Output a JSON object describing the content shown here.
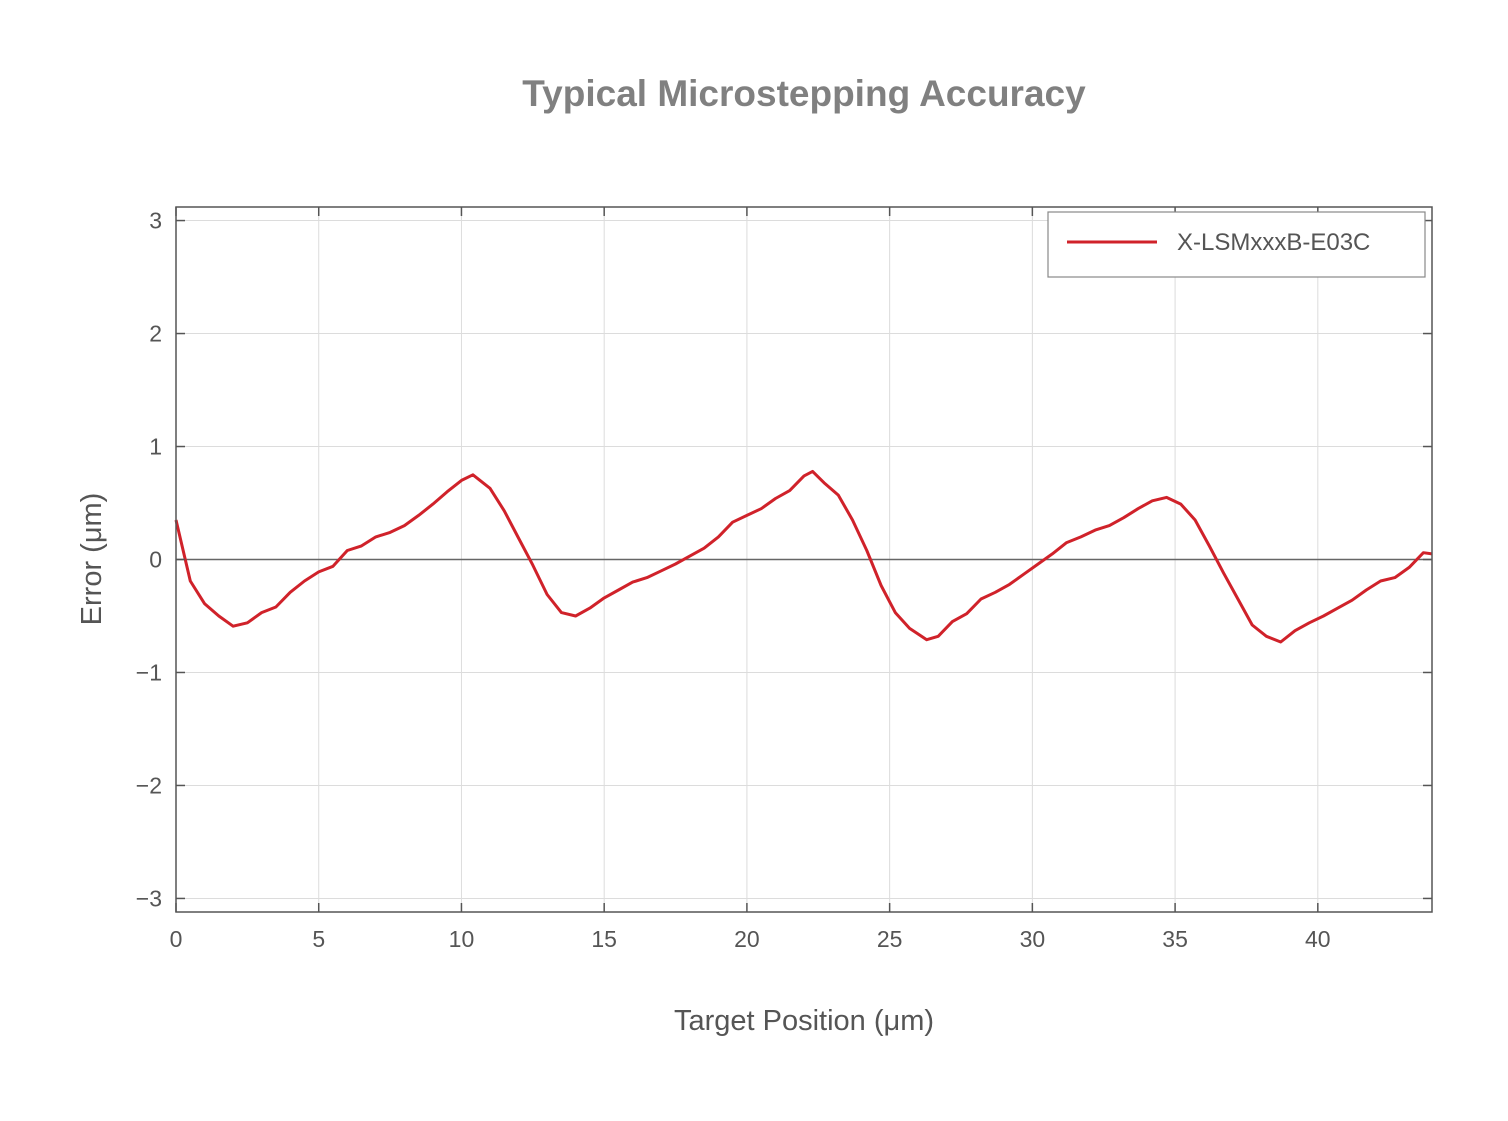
{
  "chart_data": {
    "type": "line",
    "title": "Typical Microstepping Accuracy",
    "xlabel": "Target Position (μm)",
    "ylabel": "Error (μm)",
    "xlim": [
      0,
      44
    ],
    "ylim": [
      -3.12,
      3.12
    ],
    "xticks": [
      0,
      5,
      10,
      15,
      20,
      25,
      30,
      35,
      40
    ],
    "yticks": [
      -3,
      -2,
      -1,
      0,
      1,
      2,
      3
    ],
    "xtick_labels": [
      "0",
      "5",
      "10",
      "15",
      "20",
      "25",
      "30",
      "35",
      "40"
    ],
    "ytick_labels": [
      "−3",
      "−2",
      "−1",
      "0",
      "1",
      "2",
      "3"
    ],
    "grid": true,
    "zero_line": true,
    "legend_position": "top-right",
    "series": [
      {
        "name": "X-LSMxxxB-E03C",
        "color": "#d0222a",
        "x": [
          0,
          0.5,
          1,
          1.5,
          2,
          2.5,
          3,
          3.5,
          4,
          4.5,
          5,
          5.5,
          6,
          6.5,
          7,
          7.5,
          8,
          8.5,
          9,
          9.5,
          10,
          10.4,
          11,
          11.5,
          12,
          12.5,
          13,
          13.5,
          14,
          14.5,
          15,
          15.5,
          16,
          16.5,
          17,
          17.5,
          18,
          18.5,
          19,
          19.5,
          20,
          20.5,
          21,
          21.5,
          22,
          22.3,
          22.7,
          23.2,
          23.7,
          24.2,
          24.7,
          25.2,
          25.7,
          26.3,
          26.7,
          27.2,
          27.7,
          28.2,
          28.7,
          29.2,
          29.7,
          30.2,
          30.7,
          31.2,
          31.7,
          32.2,
          32.7,
          33.2,
          33.7,
          34.2,
          34.7,
          35.2,
          35.7,
          36.2,
          36.7,
          37.2,
          37.7,
          38.2,
          38.7,
          39.2,
          39.7,
          40.2,
          40.7,
          41.2,
          41.7,
          42.2,
          42.7,
          43.2,
          43.7,
          44
        ],
        "y": [
          0.35,
          -0.19,
          -0.39,
          -0.5,
          -0.59,
          -0.56,
          -0.47,
          -0.42,
          -0.29,
          -0.19,
          -0.11,
          -0.06,
          0.08,
          0.12,
          0.2,
          0.24,
          0.3,
          0.39,
          0.49,
          0.6,
          0.7,
          0.75,
          0.63,
          0.43,
          0.19,
          -0.05,
          -0.31,
          -0.47,
          -0.5,
          -0.43,
          -0.34,
          -0.27,
          -0.2,
          -0.16,
          -0.1,
          -0.04,
          0.03,
          0.1,
          0.2,
          0.33,
          0.39,
          0.45,
          0.54,
          0.61,
          0.74,
          0.78,
          0.68,
          0.57,
          0.35,
          0.08,
          -0.23,
          -0.47,
          -0.61,
          -0.71,
          -0.68,
          -0.55,
          -0.48,
          -0.35,
          -0.29,
          -0.22,
          -0.13,
          -0.04,
          0.05,
          0.15,
          0.2,
          0.26,
          0.3,
          0.37,
          0.45,
          0.52,
          0.55,
          0.49,
          0.35,
          0.12,
          -0.12,
          -0.35,
          -0.58,
          -0.68,
          -0.73,
          -0.63,
          -0.56,
          -0.5,
          -0.43,
          -0.36,
          -0.27,
          -0.19,
          -0.16,
          -0.07,
          0.06,
          0.05
        ]
      }
    ]
  }
}
